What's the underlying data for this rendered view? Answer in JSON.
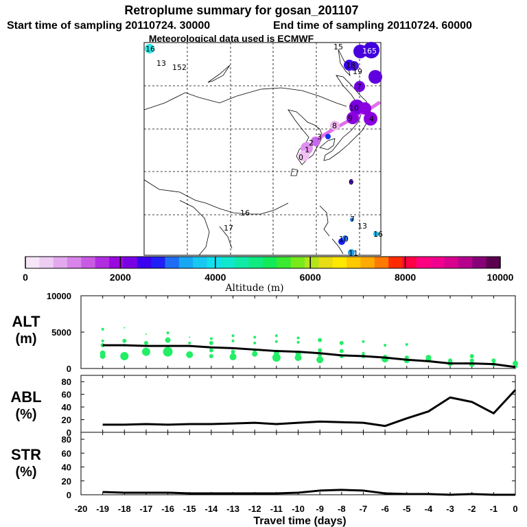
{
  "header": {
    "title": "Retroplume summary for gosan_201107",
    "start_label": "Start time of sampling 20110724. 30000",
    "end_label": "End time of sampling 20110724. 60000",
    "met_label": "Meteorological data used is ECMWF"
  },
  "map_labels": [
    "16",
    "13",
    "152",
    "15",
    "165",
    "18",
    "19",
    "7",
    "10",
    "9",
    "4",
    "8",
    "3",
    "2",
    "1",
    "0",
    "6",
    "16",
    "17",
    "7",
    "13",
    "10",
    "11",
    "16"
  ],
  "colorbar": {
    "title": "Altitude (m)",
    "ticks": [
      "0",
      "2000",
      "4000",
      "6000",
      "8000",
      "10000"
    ],
    "colors": [
      "#f6e6f8",
      "#eecdf3",
      "#e3a9ee",
      "#d884e8",
      "#c85ae3",
      "#b02ee0",
      "#9a08df",
      "#7a00e4",
      "#3a00ef",
      "#1e20f5",
      "#1e6ef5",
      "#18a8f3",
      "#16c8f2",
      "#12e0ee",
      "#10e8cc",
      "#10eaa6",
      "#10ea80",
      "#12ea58",
      "#3aea30",
      "#78ea1c",
      "#b4e41a",
      "#e8dc14",
      "#ffe800",
      "#ffc800",
      "#ffaa00",
      "#ff7a00",
      "#ff2a00",
      "#ff0044",
      "#ff0080",
      "#f0008e",
      "#d8008e",
      "#b4008c",
      "#880078",
      "#5a004e"
    ]
  },
  "chart_data": [
    {
      "type": "line",
      "name": "ALT",
      "ylabel": "ALT",
      "yunit": "(m)",
      "ylim": [
        0,
        10000
      ],
      "yticks": [
        0,
        5000,
        10000
      ],
      "x": [
        -19,
        -18,
        -17,
        -16,
        -15,
        -14,
        -13,
        -12,
        -11,
        -10,
        -9,
        -8,
        -7,
        -6,
        -5,
        -4,
        -3,
        -2,
        -1,
        0
      ],
      "median": [
        3200,
        3200,
        3100,
        3100,
        3100,
        2900,
        2800,
        2600,
        2400,
        2300,
        2100,
        1800,
        1700,
        1500,
        1200,
        1000,
        700,
        700,
        600,
        200
      ],
      "cluster_points": [
        {
          "x": -19,
          "y": 5400,
          "s": 2
        },
        {
          "x": -19,
          "y": 3800,
          "s": 2
        },
        {
          "x": -19,
          "y": 3200,
          "s": 3
        },
        {
          "x": -19,
          "y": 2100,
          "s": 4
        },
        {
          "x": -19,
          "y": 1700,
          "s": 4
        },
        {
          "x": -18,
          "y": 5600,
          "s": 1
        },
        {
          "x": -18,
          "y": 3800,
          "s": 3
        },
        {
          "x": -18,
          "y": 3200,
          "s": 2
        },
        {
          "x": -18,
          "y": 1700,
          "s": 6
        },
        {
          "x": -17,
          "y": 4700,
          "s": 1
        },
        {
          "x": -17,
          "y": 3500,
          "s": 3
        },
        {
          "x": -17,
          "y": 2300,
          "s": 6
        },
        {
          "x": -16,
          "y": 4900,
          "s": 2
        },
        {
          "x": -16,
          "y": 3900,
          "s": 4
        },
        {
          "x": -16,
          "y": 2300,
          "s": 7
        },
        {
          "x": -15,
          "y": 4300,
          "s": 1
        },
        {
          "x": -15,
          "y": 3500,
          "s": 2
        },
        {
          "x": -15,
          "y": 1900,
          "s": 5
        },
        {
          "x": -14,
          "y": 4100,
          "s": 2
        },
        {
          "x": -14,
          "y": 3500,
          "s": 3
        },
        {
          "x": -14,
          "y": 2500,
          "s": 3
        },
        {
          "x": -14,
          "y": 1700,
          "s": 3
        },
        {
          "x": -13,
          "y": 4500,
          "s": 2
        },
        {
          "x": -13,
          "y": 3800,
          "s": 2
        },
        {
          "x": -13,
          "y": 2300,
          "s": 3
        },
        {
          "x": -13,
          "y": 1600,
          "s": 5
        },
        {
          "x": -12,
          "y": 4300,
          "s": 2
        },
        {
          "x": -12,
          "y": 3500,
          "s": 2
        },
        {
          "x": -12,
          "y": 2500,
          "s": 3
        },
        {
          "x": -12,
          "y": 2000,
          "s": 4
        },
        {
          "x": -11,
          "y": 4500,
          "s": 2
        },
        {
          "x": -11,
          "y": 3700,
          "s": 2
        },
        {
          "x": -11,
          "y": 2200,
          "s": 4
        },
        {
          "x": -11,
          "y": 1500,
          "s": 6
        },
        {
          "x": -10,
          "y": 4200,
          "s": 2
        },
        {
          "x": -10,
          "y": 3600,
          "s": 2
        },
        {
          "x": -10,
          "y": 2100,
          "s": 4
        },
        {
          "x": -10,
          "y": 1500,
          "s": 5
        },
        {
          "x": -9,
          "y": 3900,
          "s": 3
        },
        {
          "x": -9,
          "y": 2500,
          "s": 3
        },
        {
          "x": -9,
          "y": 1900,
          "s": 3
        },
        {
          "x": -9,
          "y": 1200,
          "s": 5
        },
        {
          "x": -8,
          "y": 3500,
          "s": 3
        },
        {
          "x": -8,
          "y": 2400,
          "s": 3
        },
        {
          "x": -8,
          "y": 1700,
          "s": 3
        },
        {
          "x": -7,
          "y": 3700,
          "s": 2
        },
        {
          "x": -7,
          "y": 2100,
          "s": 2
        },
        {
          "x": -7,
          "y": 1700,
          "s": 3
        },
        {
          "x": -6,
          "y": 3200,
          "s": 2
        },
        {
          "x": -6,
          "y": 1600,
          "s": 3
        },
        {
          "x": -6,
          "y": 1300,
          "s": 5
        },
        {
          "x": -5,
          "y": 3300,
          "s": 2
        },
        {
          "x": -5,
          "y": 1500,
          "s": 3
        },
        {
          "x": -5,
          "y": 1100,
          "s": 4
        },
        {
          "x": -4,
          "y": 1500,
          "s": 4
        },
        {
          "x": -4,
          "y": 1200,
          "s": 4
        },
        {
          "x": -3,
          "y": 1100,
          "s": 3
        },
        {
          "x": -3,
          "y": 700,
          "s": 4
        },
        {
          "x": -2,
          "y": 1700,
          "s": 3
        },
        {
          "x": -2,
          "y": 1100,
          "s": 3
        },
        {
          "x": -2,
          "y": 600,
          "s": 4
        },
        {
          "x": -1,
          "y": 1100,
          "s": 3
        },
        {
          "x": -1,
          "y": 600,
          "s": 3
        },
        {
          "x": 0,
          "y": 700,
          "s": 4
        },
        {
          "x": 0,
          "y": 300,
          "s": 3
        }
      ]
    },
    {
      "type": "line",
      "name": "ABL",
      "ylabel": "ABL",
      "yunit": "(%)",
      "ylim": [
        0,
        90
      ],
      "yticks": [
        0,
        20,
        40,
        60,
        80
      ],
      "x": [
        -19,
        -18,
        -17,
        -16,
        -15,
        -14,
        -13,
        -12,
        -11,
        -10,
        -9,
        -8,
        -7,
        -6,
        -5,
        -4,
        -3,
        -2,
        -1,
        0
      ],
      "values": [
        12,
        12,
        13,
        12,
        13,
        13,
        14,
        15,
        13,
        15,
        17,
        16,
        15,
        10,
        22,
        33,
        55,
        48,
        30,
        67
      ]
    },
    {
      "type": "line",
      "name": "STR",
      "ylabel": "STR",
      "yunit": "(%)",
      "ylim": [
        0,
        90
      ],
      "yticks": [
        0,
        20,
        40,
        60,
        80
      ],
      "x": [
        -19,
        -18,
        -17,
        -16,
        -15,
        -14,
        -13,
        -12,
        -11,
        -10,
        -9,
        -8,
        -7,
        -6,
        -5,
        -4,
        -3,
        -2,
        -1,
        0
      ],
      "values": [
        4,
        3,
        3,
        3,
        2,
        2,
        2,
        2,
        2,
        3,
        6,
        7,
        6,
        2,
        1,
        1,
        0,
        1,
        0,
        0
      ],
      "xlabel": "Travel time (days)",
      "xticks": [
        -20,
        -19,
        -18,
        -17,
        -16,
        -15,
        -14,
        -13,
        -12,
        -11,
        -10,
        -9,
        -8,
        -7,
        -6,
        -5,
        -4,
        -3,
        -2,
        -1,
        0
      ]
    }
  ]
}
